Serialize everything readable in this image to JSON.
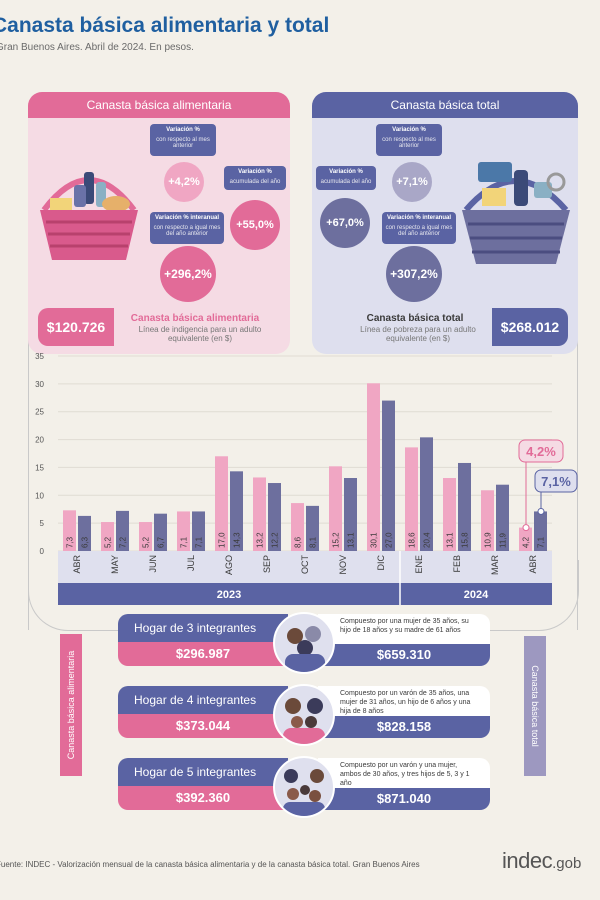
{
  "header": {
    "title": "Canasta básica alimentaria y total",
    "subtitle": "Gran Buenos Aires. Abril de 2024. En pesos."
  },
  "cba": {
    "header": "Canasta básica alimentaria",
    "badge_monthly_title": "Variación %",
    "badge_monthly_text": "con respecto al mes anterior",
    "badge_accum_title": "Variación %",
    "badge_accum_text": "acumulada del año",
    "badge_yoy_title": "Variación % interanual",
    "badge_yoy_text": "con respecto a igual mes del año anterior",
    "monthly": "+4,2%",
    "accum": "+55,0%",
    "yoy": "+296,2%",
    "price": "$120.726",
    "desc_title": "Canasta básica alimentaria",
    "desc_text": "Línea de indigencia para un adulto equivalente (en $)",
    "color": "#e26b98"
  },
  "cbt": {
    "header": "Canasta básica total",
    "badge_monthly_title": "Variación %",
    "badge_monthly_text": "con respecto al mes anterior",
    "badge_accum_title": "Variación %",
    "badge_accum_text": "acumulada del año",
    "badge_yoy_title": "Variación % interanual",
    "badge_yoy_text": "con respecto a igual mes del año anterior",
    "monthly": "+7,1%",
    "accum": "+67,0%",
    "yoy": "+307,2%",
    "price": "$268.012",
    "desc_title": "Canasta básica total",
    "desc_text": "Línea de pobreza para un adulto equivalente (en $)",
    "color": "#5a63a3"
  },
  "chart_data": {
    "type": "bar",
    "categories": [
      "ABR",
      "MAY",
      "JUN",
      "JUL",
      "AGO",
      "SEP",
      "OCT",
      "NOV",
      "DIC",
      "ENE",
      "FEB",
      "MAR",
      "ABR"
    ],
    "year_groups": [
      {
        "label": "2023",
        "from": 0,
        "to": 8
      },
      {
        "label": "2024",
        "from": 9,
        "to": 12
      }
    ],
    "series": [
      {
        "values": [
          7.3,
          5.2,
          5.2,
          7.1,
          17.0,
          13.2,
          8.6,
          15.2,
          30.1,
          18.6,
          13.1,
          10.9,
          4.2
        ],
        "labels": [
          "7,3",
          "5,2",
          "5,2",
          "7,1",
          "17,0",
          "13,2",
          "8,6",
          "15,2",
          "30,1",
          "18,6",
          "13,1",
          "10,9",
          "4,2"
        ],
        "color": "#f0a6c3"
      },
      {
        "values": [
          6.3,
          7.2,
          6.7,
          7.1,
          14.3,
          12.2,
          8.1,
          13.1,
          27.0,
          20.4,
          15.8,
          11.9,
          7.1
        ],
        "labels": [
          "6,3",
          "7,2",
          "6,7",
          "7,1",
          "14,3",
          "12,2",
          "8,1",
          "13,1",
          "27,0",
          "20,4",
          "15,8",
          "11,9",
          "7,1"
        ],
        "color": "#6d6f9e"
      }
    ],
    "y_ticks": [
      "0",
      "5",
      "10",
      "15",
      "20",
      "25",
      "30",
      "35"
    ],
    "ylim": [
      0,
      35
    ],
    "callouts": {
      "cba": "4,2%",
      "cbt": "7,1%"
    },
    "grid": true
  },
  "households": [
    {
      "name": "Hogar de 3 integrantes",
      "cba": "$296.987",
      "cbt": "$659.310",
      "desc": "Compuesto por una mujer de 35 años, su hijo de 18 años y su madre de 61 años"
    },
    {
      "name": "Hogar de 4 integrantes",
      "cba": "$373.044",
      "cbt": "$828.158",
      "desc": "Compuesto por un varón de 35 años, una mujer de 31 años, un hijo de 6 años y una hija de 8 años"
    },
    {
      "name": "Hogar de 5 integrantes",
      "cba": "$392.360",
      "cbt": "$871.040",
      "desc": "Compuesto por un varón y una mujer, ambos de 30 años, y tres hijos de 5, 3 y 1 año"
    }
  ],
  "side_tabs": {
    "left": "Canasta básica alimentaria",
    "right": "Canasta básica total"
  },
  "footer": {
    "source": "Fuente: INDEC - Valorización mensual de la canasta básica alimentaria y de la canasta básica total. Gran Buenos Aires",
    "logo": "indec",
    "logo_suffix": ".gob"
  }
}
